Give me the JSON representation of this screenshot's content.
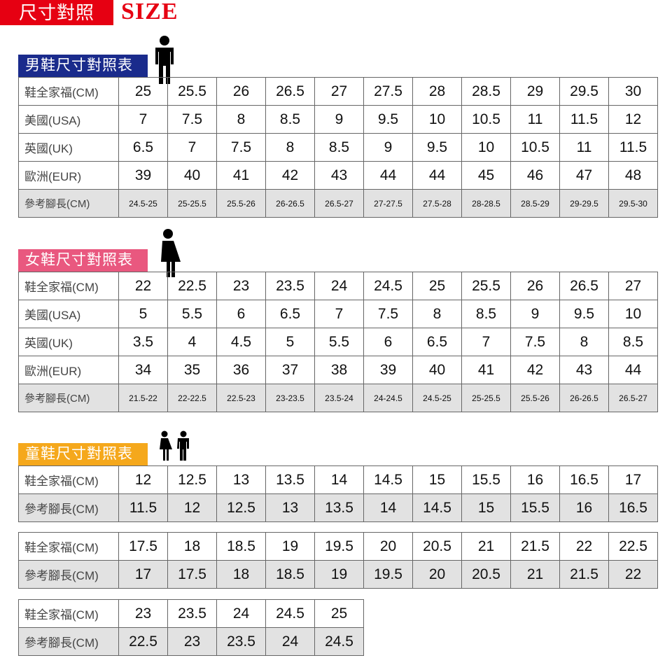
{
  "header": {
    "title": "尺寸對照",
    "size_label": "SIZE",
    "accent": "#e60012"
  },
  "men": {
    "title": "男鞋尺寸對照表",
    "color": "#1a2b8c",
    "icon": "man-icon",
    "rows": [
      {
        "label": "鞋全家福(CM)",
        "values": [
          "25",
          "25.5",
          "26",
          "26.5",
          "27",
          "27.5",
          "28",
          "28.5",
          "29",
          "29.5",
          "30"
        ]
      },
      {
        "label": "美國(USA)",
        "values": [
          "7",
          "7.5",
          "8",
          "8.5",
          "9",
          "9.5",
          "10",
          "10.5",
          "11",
          "11.5",
          "12"
        ]
      },
      {
        "label": "英國(UK)",
        "values": [
          "6.5",
          "7",
          "7.5",
          "8",
          "8.5",
          "9",
          "9.5",
          "10",
          "10.5",
          "11",
          "11.5"
        ]
      },
      {
        "label": "歐洲(EUR)",
        "values": [
          "39",
          "40",
          "41",
          "42",
          "43",
          "44",
          "44",
          "45",
          "46",
          "47",
          "48"
        ]
      },
      {
        "label": "參考腳長(CM)",
        "values": [
          "24.5-25",
          "25-25.5",
          "25.5-26",
          "26-26.5",
          "26.5-27",
          "27-27.5",
          "27.5-28",
          "28-28.5",
          "28.5-29",
          "29-29.5",
          "29.5-30"
        ]
      }
    ]
  },
  "women": {
    "title": "女鞋尺寸對照表",
    "color": "#e9587f",
    "icon": "woman-icon",
    "rows": [
      {
        "label": "鞋全家福(CM)",
        "values": [
          "22",
          "22.5",
          "23",
          "23.5",
          "24",
          "24.5",
          "25",
          "25.5",
          "26",
          "26.5",
          "27"
        ]
      },
      {
        "label": "美國(USA)",
        "values": [
          "5",
          "5.5",
          "6",
          "6.5",
          "7",
          "7.5",
          "8",
          "8.5",
          "9",
          "9.5",
          "10"
        ]
      },
      {
        "label": "英國(UK)",
        "values": [
          "3.5",
          "4",
          "4.5",
          "5",
          "5.5",
          "6",
          "6.5",
          "7",
          "7.5",
          "8",
          "8.5"
        ]
      },
      {
        "label": "歐洲(EUR)",
        "values": [
          "34",
          "35",
          "36",
          "37",
          "38",
          "39",
          "40",
          "41",
          "42",
          "43",
          "44"
        ]
      },
      {
        "label": "參考腳長(CM)",
        "values": [
          "21.5-22",
          "22-22.5",
          "22.5-23",
          "23-23.5",
          "23.5-24",
          "24-24.5",
          "24.5-25",
          "25-25.5",
          "25.5-26",
          "26-26.5",
          "26.5-27"
        ]
      }
    ]
  },
  "kids": {
    "title": "童鞋尺寸對照表",
    "color": "#f5a81c",
    "icon": "children-icon",
    "tables": [
      {
        "rows": [
          {
            "label": "鞋全家福(CM)",
            "values": [
              "12",
              "12.5",
              "13",
              "13.5",
              "14",
              "14.5",
              "15",
              "15.5",
              "16",
              "16.5",
              "17"
            ]
          },
          {
            "label": "參考腳長(CM)",
            "values": [
              "11.5",
              "12",
              "12.5",
              "13",
              "13.5",
              "14",
              "14.5",
              "15",
              "15.5",
              "16",
              "16.5"
            ]
          }
        ]
      },
      {
        "rows": [
          {
            "label": "鞋全家福(CM)",
            "values": [
              "17.5",
              "18",
              "18.5",
              "19",
              "19.5",
              "20",
              "20.5",
              "21",
              "21.5",
              "22",
              "22.5"
            ]
          },
          {
            "label": "參考腳長(CM)",
            "values": [
              "17",
              "17.5",
              "18",
              "18.5",
              "19",
              "19.5",
              "20",
              "20.5",
              "21",
              "21.5",
              "22"
            ]
          }
        ]
      },
      {
        "rows": [
          {
            "label": "鞋全家福(CM)",
            "values": [
              "23",
              "23.5",
              "24",
              "24.5",
              "25"
            ]
          },
          {
            "label": "參考腳長(CM)",
            "values": [
              "22.5",
              "23",
              "23.5",
              "24",
              "24.5"
            ]
          }
        ]
      }
    ]
  }
}
